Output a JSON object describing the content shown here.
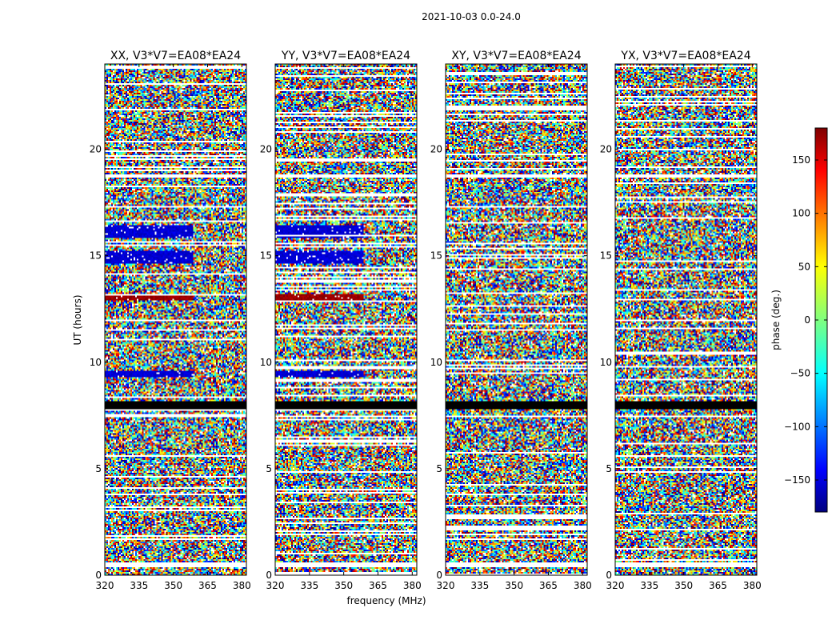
{
  "title": "2021-10-03 0.0-24.0",
  "chart_data": {
    "type": "heatmap",
    "xlabel": "frequency (MHz)",
    "ylabel": "UT (hours)",
    "xlim": [
      320,
      382
    ],
    "ylim": [
      0,
      24
    ],
    "x_ticks": [
      320,
      335,
      350,
      365,
      380
    ],
    "y_ticks": [
      0,
      5,
      10,
      15,
      20
    ],
    "colorbar": {
      "label": "phase (deg.)",
      "range": [
        -180,
        180
      ],
      "ticks": [
        -150,
        -100,
        -50,
        0,
        50,
        100,
        150
      ],
      "colormap": "jet",
      "colors": [
        "#00007f",
        "#0000ff",
        "#00ffff",
        "#7fff7f",
        "#ffff00",
        "#ff0000",
        "#7f0000"
      ]
    },
    "panels": [
      {
        "title": "XX, V3*V7=EA08*EA24",
        "dominant_phase": [
          {
            "ut_range": [
              15.8,
              16.4
            ],
            "phase": -150
          },
          {
            "ut_range": [
              14.6,
              15.2
            ],
            "phase": -150
          },
          {
            "ut_range": [
              9.3,
              9.6
            ],
            "phase": -150
          },
          {
            "ut_range": [
              12.9,
              13.2
            ],
            "phase": 170
          }
        ]
      },
      {
        "title": "YY, V3*V7=EA08*EA24",
        "dominant_phase": [
          {
            "ut_range": [
              15.8,
              16.4
            ],
            "phase": -150
          },
          {
            "ut_range": [
              14.6,
              15.2
            ],
            "phase": -150
          },
          {
            "ut_range": [
              9.3,
              9.6
            ],
            "phase": -150
          },
          {
            "ut_range": [
              12.9,
              13.2
            ],
            "phase": 170
          }
        ]
      },
      {
        "title": "XY, V3*V7=EA08*EA24",
        "dominant_phase": []
      },
      {
        "title": "YX, V3*V7=EA08*EA24",
        "dominant_phase": []
      }
    ],
    "flagged_ut_bands": [
      [
        0.4,
        0.6
      ],
      [
        7.4,
        7.5
      ],
      [
        18.7,
        18.8
      ]
    ],
    "dark_ut_band": [
      7.8,
      8.2
    ]
  }
}
